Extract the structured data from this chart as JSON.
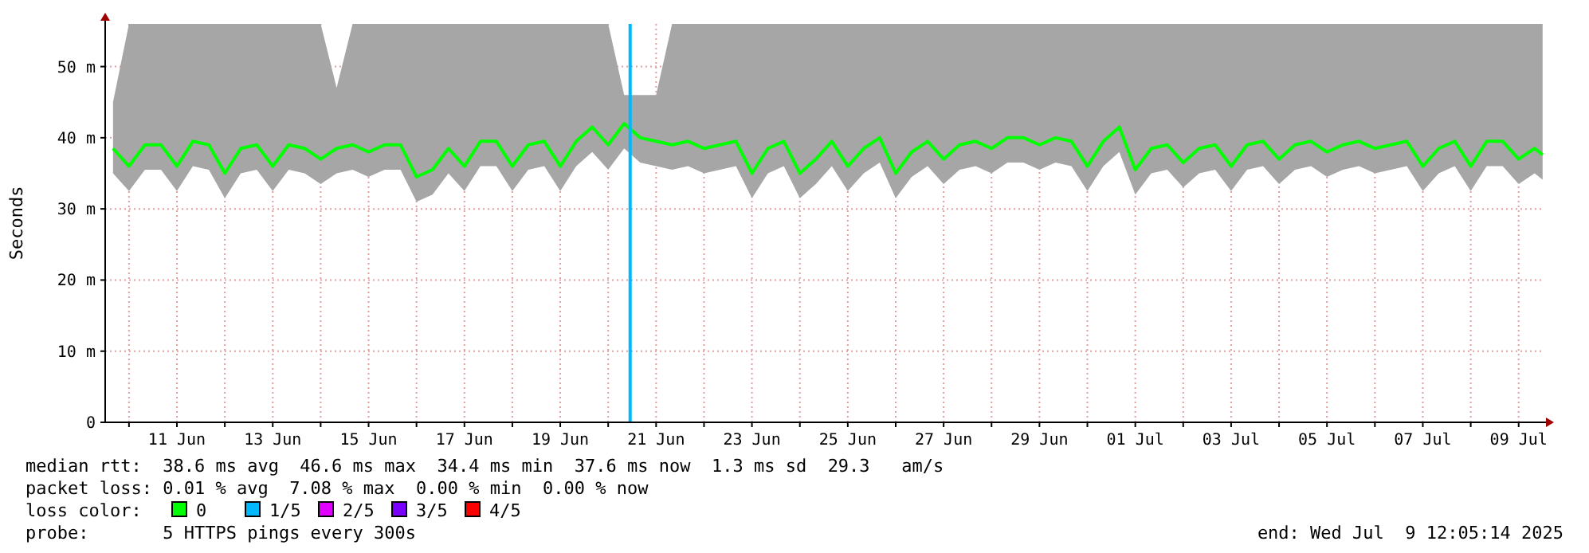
{
  "chart_data": {
    "type": "line",
    "ylabel": "Seconds",
    "legend_title": "loss color:",
    "legend": "bottom left",
    "grid": true,
    "line_style": "solid",
    "xlim": [
      "2025-06-09T12:05",
      "2025-07-09T12:05"
    ],
    "xticks": [
      {
        "value": "2025-06-10",
        "label": null
      },
      {
        "value": "2025-06-11",
        "label": "11 Jun"
      },
      {
        "value": "2025-06-12",
        "label": null
      },
      {
        "value": "2025-06-13",
        "label": "13 Jun"
      },
      {
        "value": "2025-06-14",
        "label": null
      },
      {
        "value": "2025-06-15",
        "label": "15 Jun"
      },
      {
        "value": "2025-06-16",
        "label": null
      },
      {
        "value": "2025-06-17",
        "label": "17 Jun"
      },
      {
        "value": "2025-06-18",
        "label": null
      },
      {
        "value": "2025-06-19",
        "label": "19 Jun"
      },
      {
        "value": "2025-06-20",
        "label": null
      },
      {
        "value": "2025-06-21",
        "label": "21 Jun"
      },
      {
        "value": "2025-06-22",
        "label": null
      },
      {
        "value": "2025-06-23",
        "label": "23 Jun"
      },
      {
        "value": "2025-06-24",
        "label": null
      },
      {
        "value": "2025-06-25",
        "label": "25 Jun"
      },
      {
        "value": "2025-06-26",
        "label": null
      },
      {
        "value": "2025-06-27",
        "label": "27 Jun"
      },
      {
        "value": "2025-06-28",
        "label": null
      },
      {
        "value": "2025-06-29",
        "label": "29 Jun"
      },
      {
        "value": "2025-06-30",
        "label": null
      },
      {
        "value": "2025-07-01",
        "label": "01 Jul"
      },
      {
        "value": "2025-07-02",
        "label": null
      },
      {
        "value": "2025-07-03",
        "label": "03 Jul"
      },
      {
        "value": "2025-07-04",
        "label": null
      },
      {
        "value": "2025-07-05",
        "label": "05 Jul"
      },
      {
        "value": "2025-07-06",
        "label": null
      },
      {
        "value": "2025-07-07",
        "label": "07 Jul"
      },
      {
        "value": "2025-07-08",
        "label": null
      },
      {
        "value": "2025-07-09",
        "label": "09 Jul"
      }
    ],
    "ylim": [
      0,
      56
    ],
    "yticks": [
      0,
      {
        "value": 10,
        "label": "10 m"
      },
      {
        "value": 20,
        "label": "20 m"
      },
      {
        "value": 30,
        "label": "30 m"
      },
      {
        "value": 40,
        "label": "40 m"
      },
      {
        "value": 50,
        "label": "50 m"
      }
    ],
    "x": [
      "2025-06-09T16:00",
      "2025-06-10T00:00",
      "2025-06-10T08:00",
      "2025-06-10T16:00",
      "2025-06-11T00:00",
      "2025-06-11T08:00",
      "2025-06-11T16:00",
      "2025-06-12T00:00",
      "2025-06-12T08:00",
      "2025-06-12T16:00",
      "2025-06-13T00:00",
      "2025-06-13T08:00",
      "2025-06-13T16:00",
      "2025-06-14T00:00",
      "2025-06-14T08:00",
      "2025-06-14T16:00",
      "2025-06-15T00:00",
      "2025-06-15T08:00",
      "2025-06-15T16:00",
      "2025-06-16T00:00",
      "2025-06-16T08:00",
      "2025-06-16T16:00",
      "2025-06-17T00:00",
      "2025-06-17T08:00",
      "2025-06-17T16:00",
      "2025-06-18T00:00",
      "2025-06-18T08:00",
      "2025-06-18T16:00",
      "2025-06-19T00:00",
      "2025-06-19T08:00",
      "2025-06-19T16:00",
      "2025-06-20T00:00",
      "2025-06-20T08:00",
      "2025-06-20T16:00",
      "2025-06-21T00:00",
      "2025-06-21T08:00",
      "2025-06-21T16:00",
      "2025-06-22T00:00",
      "2025-06-22T08:00",
      "2025-06-22T16:00",
      "2025-06-23T00:00",
      "2025-06-23T08:00",
      "2025-06-23T16:00",
      "2025-06-24T00:00",
      "2025-06-24T08:00",
      "2025-06-24T16:00",
      "2025-06-25T00:00",
      "2025-06-25T08:00",
      "2025-06-25T16:00",
      "2025-06-26T00:00",
      "2025-06-26T08:00",
      "2025-06-26T16:00",
      "2025-06-27T00:00",
      "2025-06-27T08:00",
      "2025-06-27T16:00",
      "2025-06-28T00:00",
      "2025-06-28T08:00",
      "2025-06-28T16:00",
      "2025-06-29T00:00",
      "2025-06-29T08:00",
      "2025-06-29T16:00",
      "2025-06-30T00:00",
      "2025-06-30T08:00",
      "2025-06-30T16:00",
      "2025-07-01T00:00",
      "2025-07-01T08:00",
      "2025-07-01T16:00",
      "2025-07-02T00:00",
      "2025-07-02T08:00",
      "2025-07-02T16:00",
      "2025-07-03T00:00",
      "2025-07-03T08:00",
      "2025-07-03T16:00",
      "2025-07-04T00:00",
      "2025-07-04T08:00",
      "2025-07-04T16:00",
      "2025-07-05T00:00",
      "2025-07-05T08:00",
      "2025-07-05T16:00",
      "2025-07-06T00:00",
      "2025-07-06T08:00",
      "2025-07-06T16:00",
      "2025-07-07T00:00",
      "2025-07-07T08:00",
      "2025-07-07T16:00",
      "2025-07-08T00:00",
      "2025-07-08T08:00",
      "2025-07-08T16:00",
      "2025-07-09T00:00",
      "2025-07-09T08:00",
      "2025-07-09T12:00"
    ],
    "series": [
      {
        "name": "0",
        "color": "#00ff00",
        "values": [
          38.5,
          36,
          39,
          39,
          36,
          39.5,
          39,
          35,
          38.5,
          39,
          36,
          39,
          38.5,
          37,
          38.5,
          39,
          38,
          39,
          39,
          34.5,
          35.5,
          38.5,
          36,
          39.5,
          39.5,
          36,
          39,
          39.5,
          36,
          39.5,
          41.5,
          39,
          42,
          40,
          39.5,
          39,
          39.5,
          38.5,
          39,
          39.5,
          35,
          38.5,
          39.5,
          35,
          37,
          39.5,
          36,
          38.5,
          40,
          35,
          38,
          39.5,
          37,
          39,
          39.5,
          38.5,
          40,
          40,
          39,
          40,
          39.5,
          36,
          39.5,
          41.5,
          35.5,
          38.5,
          39,
          36.5,
          38.5,
          39,
          36,
          39,
          39.5,
          37,
          39,
          39.5,
          38,
          39,
          39.5,
          38.5,
          39,
          39.5,
          36,
          38.5,
          39.5,
          36,
          39.5,
          39.5,
          37,
          38.5,
          37.6
        ],
        "lower": [
          35,
          32.5,
          35.5,
          35.5,
          32.5,
          36,
          35.5,
          31.5,
          35,
          35.5,
          32.5,
          35.5,
          35,
          33.5,
          35,
          35.5,
          34.5,
          35.5,
          35.5,
          31,
          32,
          35,
          32.5,
          36,
          36,
          32.5,
          35.5,
          36,
          32.5,
          36,
          38,
          35.5,
          38.5,
          36.5,
          36,
          35.5,
          36,
          35,
          35.5,
          36,
          31.5,
          35,
          36,
          31.5,
          33.5,
          36,
          32.5,
          35,
          36.5,
          31.5,
          34.5,
          36,
          33.5,
          35.5,
          36,
          35,
          36.5,
          36.5,
          35.5,
          36.5,
          36,
          32.5,
          36,
          38,
          32,
          35,
          35.5,
          33,
          35,
          35.5,
          32.5,
          35.5,
          36,
          33.5,
          35.5,
          36,
          34.5,
          35.5,
          36,
          35,
          35.5,
          36,
          32.5,
          35,
          36,
          32.5,
          36,
          36,
          33.5,
          35,
          34.1
        ],
        "upper": [
          45,
          56,
          56,
          56,
          56,
          56,
          56,
          56,
          56,
          56,
          56,
          56,
          56,
          56,
          47,
          56,
          56,
          56,
          56,
          56,
          56,
          56,
          56,
          56,
          56,
          56,
          56,
          56,
          56,
          56,
          56,
          56,
          46,
          46,
          46,
          56,
          56,
          56,
          56,
          56,
          56,
          56,
          56,
          56,
          56,
          56,
          56,
          56,
          56,
          56,
          56,
          56,
          56,
          56,
          56,
          56,
          56,
          56,
          56,
          56,
          56,
          56,
          56,
          56,
          56,
          56,
          56,
          56,
          56,
          56,
          56,
          56,
          56,
          56,
          56,
          56,
          56,
          56,
          56,
          56,
          56,
          56,
          56,
          56,
          56,
          56,
          56,
          56,
          56,
          56,
          56
        ]
      },
      {
        "name": "1/5",
        "color": "#00b8ff",
        "values": [
          null,
          null,
          null,
          null,
          null,
          null,
          null,
          null,
          null,
          null,
          null,
          null,
          null,
          null,
          null,
          null,
          null,
          null,
          null,
          null,
          null,
          null,
          null,
          null,
          null,
          null,
          null,
          null,
          null,
          null,
          null,
          null,
          null,
          null,
          null,
          null,
          null,
          null,
          null,
          null,
          null,
          null,
          null,
          null,
          null,
          null,
          null,
          null,
          null,
          null,
          null,
          null,
          null,
          null,
          null,
          null,
          null,
          null,
          null,
          null,
          null,
          null,
          null,
          null,
          null,
          null,
          null,
          null,
          null,
          null,
          null,
          null,
          null,
          null,
          null,
          null,
          null,
          null,
          null,
          null,
          null,
          null,
          null,
          null,
          null,
          null,
          null,
          null,
          null,
          null,
          null
        ]
      },
      {
        "name": "2/5",
        "color": "#e000ff",
        "values": [
          null,
          null,
          null,
          null,
          null,
          null,
          null,
          null,
          null,
          null,
          null,
          null,
          null,
          null,
          null,
          null,
          null,
          null,
          null,
          null,
          null,
          null,
          null,
          null,
          null,
          null,
          null,
          null,
          null,
          null,
          null,
          null,
          null,
          null,
          null,
          null,
          null,
          null,
          null,
          null,
          null,
          null,
          null,
          null,
          null,
          null,
          null,
          null,
          null,
          null,
          null,
          null,
          null,
          null,
          null,
          null,
          null,
          null,
          null,
          null,
          null,
          null,
          null,
          null,
          null,
          null,
          null,
          null,
          null,
          null,
          null,
          null,
          null,
          null,
          null,
          null,
          null,
          null,
          null,
          null,
          null,
          null,
          null,
          null,
          null,
          null,
          null,
          null,
          null,
          null,
          null
        ]
      },
      {
        "name": "3/5",
        "color": "#7a00ff",
        "values": [
          null,
          null,
          null,
          null,
          null,
          null,
          null,
          null,
          null,
          null,
          null,
          null,
          null,
          null,
          null,
          null,
          null,
          null,
          null,
          null,
          null,
          null,
          null,
          null,
          null,
          null,
          null,
          null,
          null,
          null,
          null,
          null,
          null,
          null,
          null,
          null,
          null,
          null,
          null,
          null,
          null,
          null,
          null,
          null,
          null,
          null,
          null,
          null,
          null,
          null,
          null,
          null,
          null,
          null,
          null,
          null,
          null,
          null,
          null,
          null,
          null,
          null,
          null,
          null,
          null,
          null,
          null,
          null,
          null,
          null,
          null,
          null,
          null,
          null,
          null,
          null,
          null,
          null,
          null,
          null,
          null,
          null,
          null,
          null,
          null,
          null,
          null,
          null,
          null,
          null,
          null
        ]
      },
      {
        "name": "4/5",
        "color": "#ff0000",
        "values": [
          null,
          null,
          null,
          null,
          null,
          null,
          null,
          null,
          null,
          null,
          null,
          null,
          null,
          null,
          null,
          null,
          null,
          null,
          null,
          null,
          null,
          null,
          null,
          null,
          null,
          null,
          null,
          null,
          null,
          null,
          null,
          null,
          null,
          null,
          null,
          null,
          null,
          null,
          null,
          null,
          null,
          null,
          null,
          null,
          null,
          null,
          null,
          null,
          null,
          null,
          null,
          null,
          null,
          null,
          null,
          null,
          null,
          null,
          null,
          null,
          null,
          null,
          null,
          null,
          null,
          null,
          null,
          null,
          null,
          null,
          null,
          null,
          null,
          null,
          null,
          null,
          null,
          null,
          null,
          null,
          null,
          null,
          null,
          null,
          null,
          null,
          null,
          null,
          null,
          null,
          null
        ]
      }
    ],
    "ref_lines": [
      {
        "axis": "x",
        "value": "2025-06-20T11:00",
        "color": "#00b8ff"
      }
    ],
    "annotations": [
      "median rtt:  38.6 ms avg  46.6 ms max  34.4 ms min  37.6 ms now  1.3 ms sd  29.3   am/s",
      "packet loss: 0.01 % avg  7.08 % max  0.00 % min  0.00 % now",
      "probe:       5 HTTPS pings every 300s",
      "end: Wed Jul  9 12:05:14 2025"
    ]
  }
}
